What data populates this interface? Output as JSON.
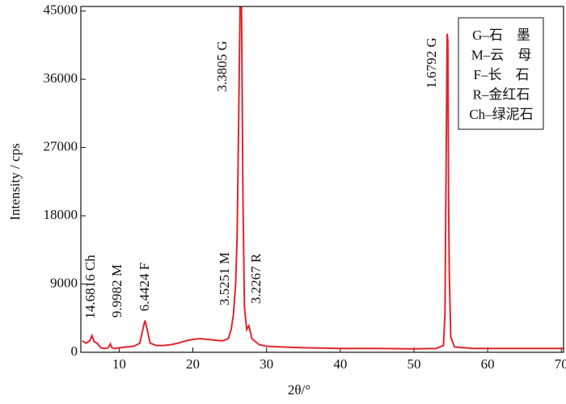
{
  "chart_data": {
    "type": "line",
    "xlabel": "2θ/°",
    "ylabel": "Intensity / cps",
    "x": [
      5,
      5.5,
      6,
      6.3,
      6.6,
      7,
      7.5,
      8,
      8.5,
      8.8,
      9,
      9.5,
      10,
      11,
      12,
      12.8,
      13.2,
      13.5,
      13.8,
      14.2,
      15,
      16,
      17,
      18,
      19,
      20,
      21,
      22,
      23,
      24,
      24.8,
      25.2,
      25.5,
      25.8,
      26,
      26.2,
      26.4,
      26.6,
      26.8,
      27,
      27.3,
      27.6,
      28,
      29,
      30,
      32,
      35,
      40,
      45,
      50,
      53,
      54,
      54.2,
      54.4,
      54.5,
      54.6,
      54.7,
      54.8,
      55,
      55.5,
      58,
      62,
      66,
      70.3
    ],
    "series": [
      {
        "color": "#e0262b",
        "values": [
          1500,
          1200,
          1500,
          2200,
          1400,
          1200,
          600,
          500,
          600,
          1100,
          600,
          500,
          600,
          700,
          800,
          1200,
          3000,
          4200,
          3000,
          1200,
          900,
          900,
          1000,
          1200,
          1500,
          1700,
          1800,
          1700,
          1600,
          1500,
          1800,
          3000,
          5000,
          9000,
          15000,
          30000,
          45600,
          45600,
          20000,
          6000,
          3000,
          3500,
          1800,
          1000,
          800,
          700,
          600,
          500,
          500,
          450,
          500,
          900,
          5000,
          30000,
          42000,
          41000,
          20000,
          10000,
          2000,
          700,
          500,
          500,
          500,
          500
        ]
      }
    ],
    "xlim": [
      4.8,
      70.3
    ],
    "ylim": [
      0,
      45600
    ],
    "xticks": [
      10,
      20,
      30,
      40,
      50,
      60,
      70
    ],
    "yticks": [
      0,
      9000,
      18000,
      27000,
      36000,
      45000
    ],
    "annotations": [
      "14.6816 Ch",
      "9.9982 M",
      "6.4424 F",
      "3.3805 G",
      "3.5251 M",
      "3.2267 R",
      "1.6792 G"
    ],
    "legend": [
      "G–石　墨",
      "M–云　母",
      "F–长　石",
      "R–金红石",
      "Ch–绿泥石"
    ]
  }
}
